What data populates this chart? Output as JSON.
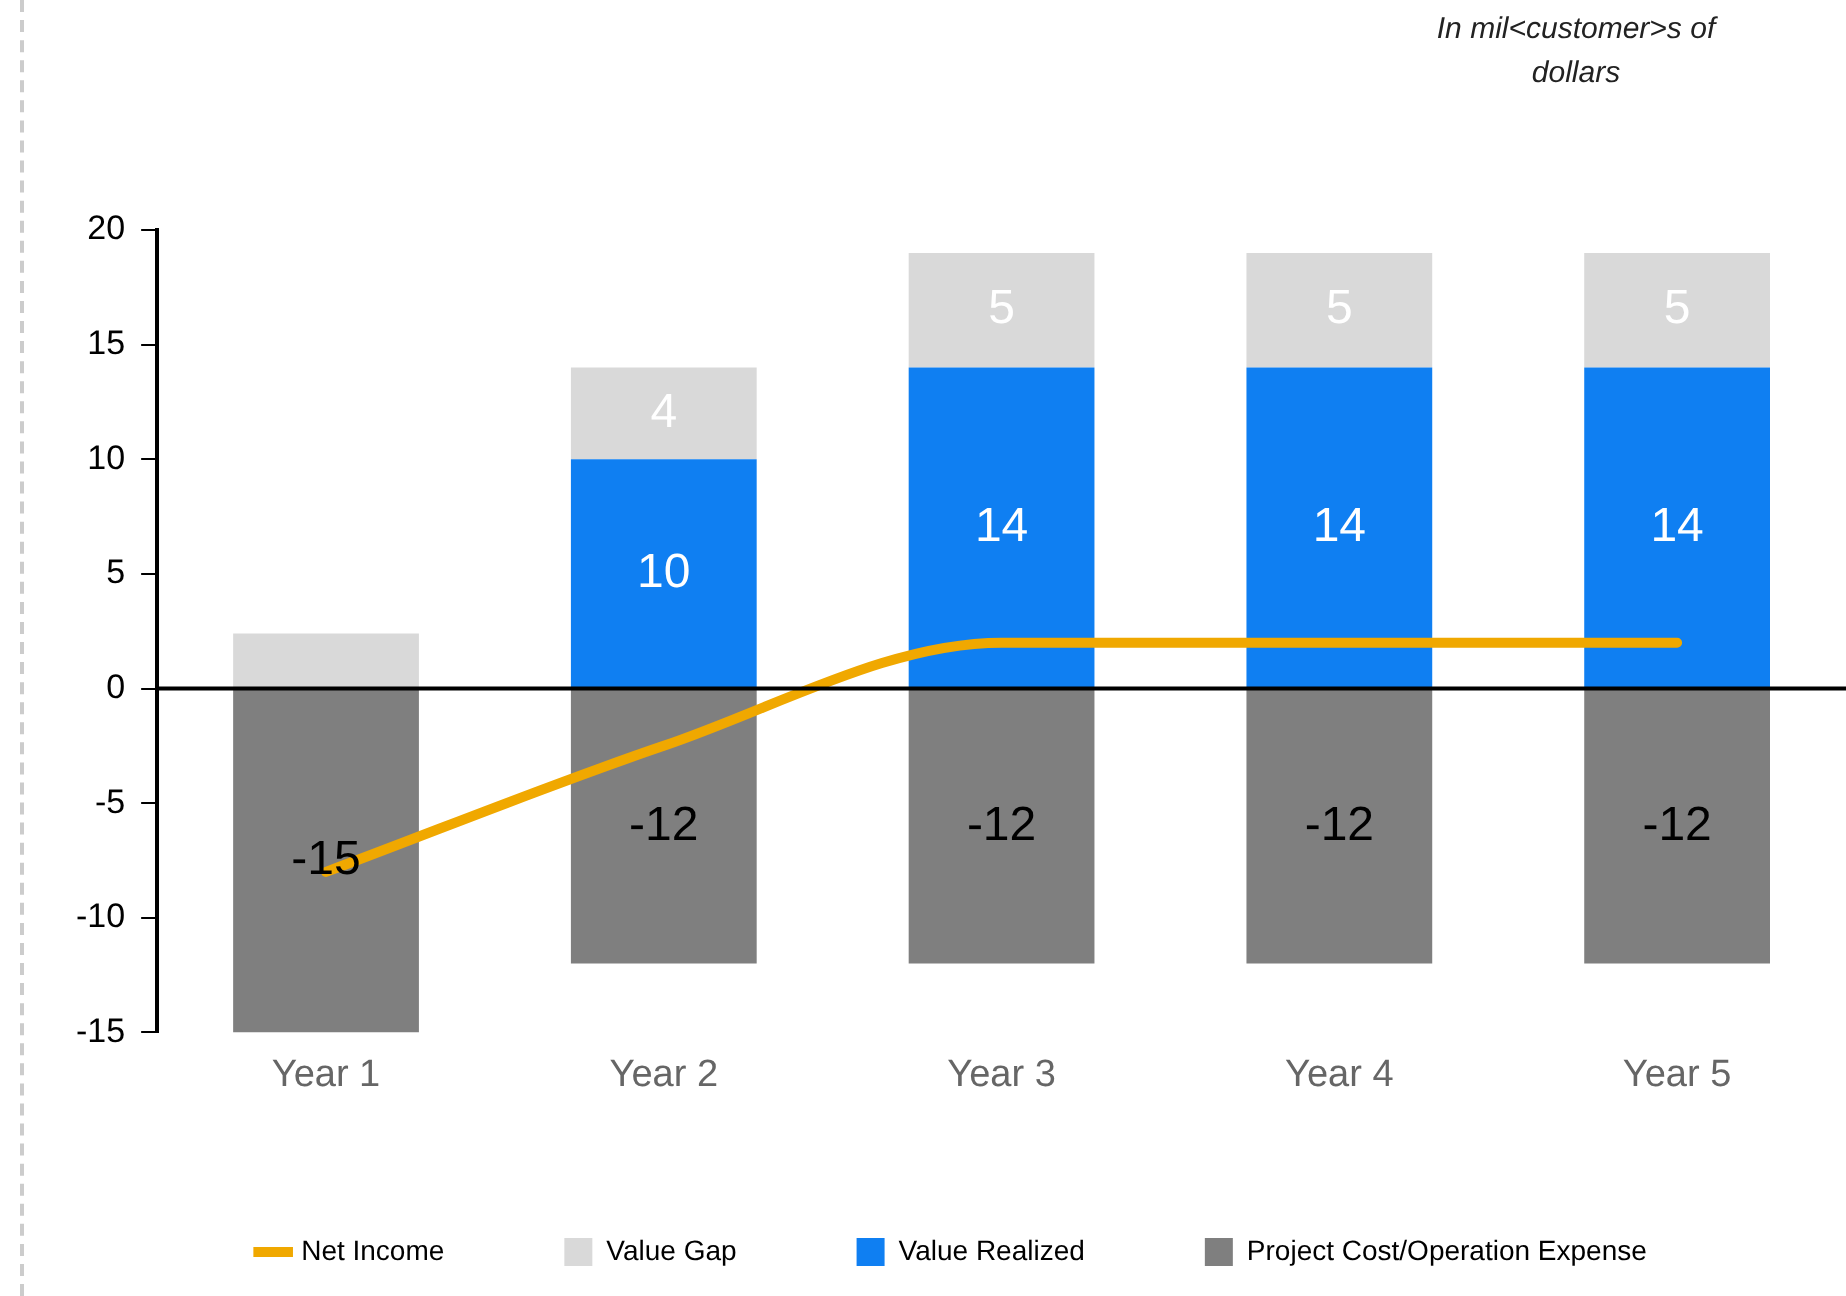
{
  "chart_data": {
    "type": "bar",
    "stacked": true,
    "categories": [
      "Year 1",
      "Year 2",
      "Year 3",
      "Year 4",
      "Year 5"
    ],
    "series": [
      {
        "name": "Net Income",
        "type": "line",
        "color": "#f0a800",
        "values": [
          -8,
          -2.5,
          2,
          2,
          2
        ]
      },
      {
        "name": "Project Cost/Operation Expense",
        "color": "#7f7f7f",
        "values": [
          -15,
          -12,
          -12,
          -12,
          -12
        ],
        "value_labels": [
          "-15",
          "-12",
          "-12",
          "-12",
          "-12"
        ]
      },
      {
        "name": "Value Realized",
        "color": "#0f7ff2",
        "values": [
          null,
          10,
          14,
          14,
          14
        ],
        "value_labels": [
          null,
          "10",
          "14",
          "14",
          "14"
        ]
      },
      {
        "name": "Value Gap",
        "color": "#d9d9d9",
        "values": [
          2.4,
          4,
          5,
          5,
          5
        ],
        "value_labels": [
          null,
          "4",
          "5",
          "5",
          "5"
        ]
      }
    ],
    "ylim": [
      -15,
      20
    ],
    "yticks": [
      -15,
      -10,
      -5,
      0,
      5,
      10,
      15,
      20
    ],
    "grid": false,
    "ref_lines": [
      {
        "axis": "y",
        "value": 0,
        "color": "#000000"
      }
    ],
    "legend": "bottom",
    "marker": "none",
    "annotations": [
      "In mil<customer>s of dollars"
    ]
  }
}
